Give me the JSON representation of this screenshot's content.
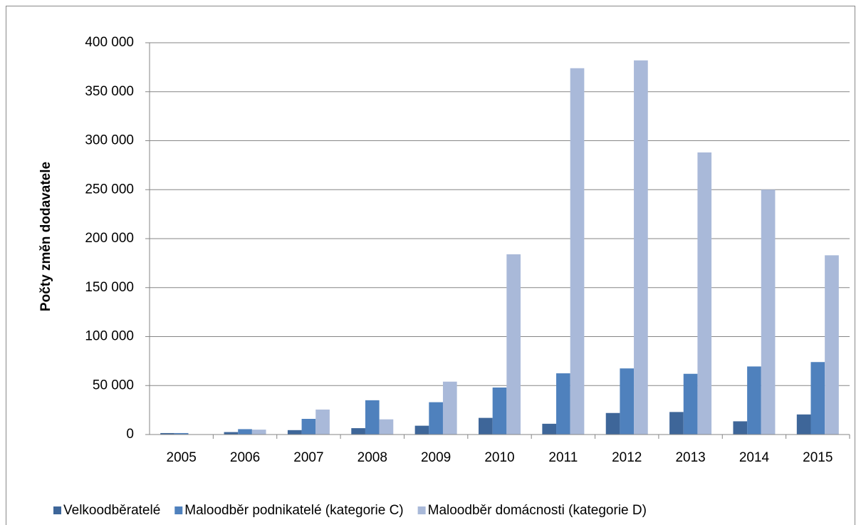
{
  "chart_data": {
    "type": "bar",
    "y_label": "Počty změn dodavatele",
    "categories": [
      "2005",
      "2006",
      "2007",
      "2008",
      "2009",
      "2010",
      "2011",
      "2012",
      "2013",
      "2014",
      "2015"
    ],
    "series": [
      {
        "name": "Velkoodběratelé",
        "color": "#3e6699",
        "values": [
          1500,
          2500,
          4500,
          6500,
          9000,
          17000,
          11000,
          22000,
          23000,
          13500,
          20500
        ]
      },
      {
        "name": "Maloodběr podnikatelé (kategorie C)",
        "color": "#4f81bd",
        "values": [
          1500,
          5500,
          16000,
          35000,
          33000,
          48000,
          62500,
          67500,
          62000,
          69500,
          74000
        ]
      },
      {
        "name": "Maloodběr domácnosti (kategorie D)",
        "color": "#a9b9d9",
        "values": [
          0,
          5000,
          25500,
          15500,
          54000,
          184000,
          374000,
          382000,
          288000,
          250000,
          183000
        ]
      }
    ],
    "ylim": [
      0,
      400000
    ],
    "yticks": [
      0,
      {
        "value": 50000,
        "label": "50 000"
      },
      {
        "value": 100000,
        "label": "100 000"
      },
      {
        "value": 150000,
        "label": "150 000"
      },
      {
        "value": 200000,
        "label": "200 000"
      },
      {
        "value": 250000,
        "label": "250 000"
      },
      {
        "value": 300000,
        "label": "300 000"
      },
      {
        "value": 350000,
        "label": "350 000"
      },
      {
        "value": 400000,
        "label": "400 000"
      }
    ],
    "grid": true,
    "legend": "bottom"
  }
}
